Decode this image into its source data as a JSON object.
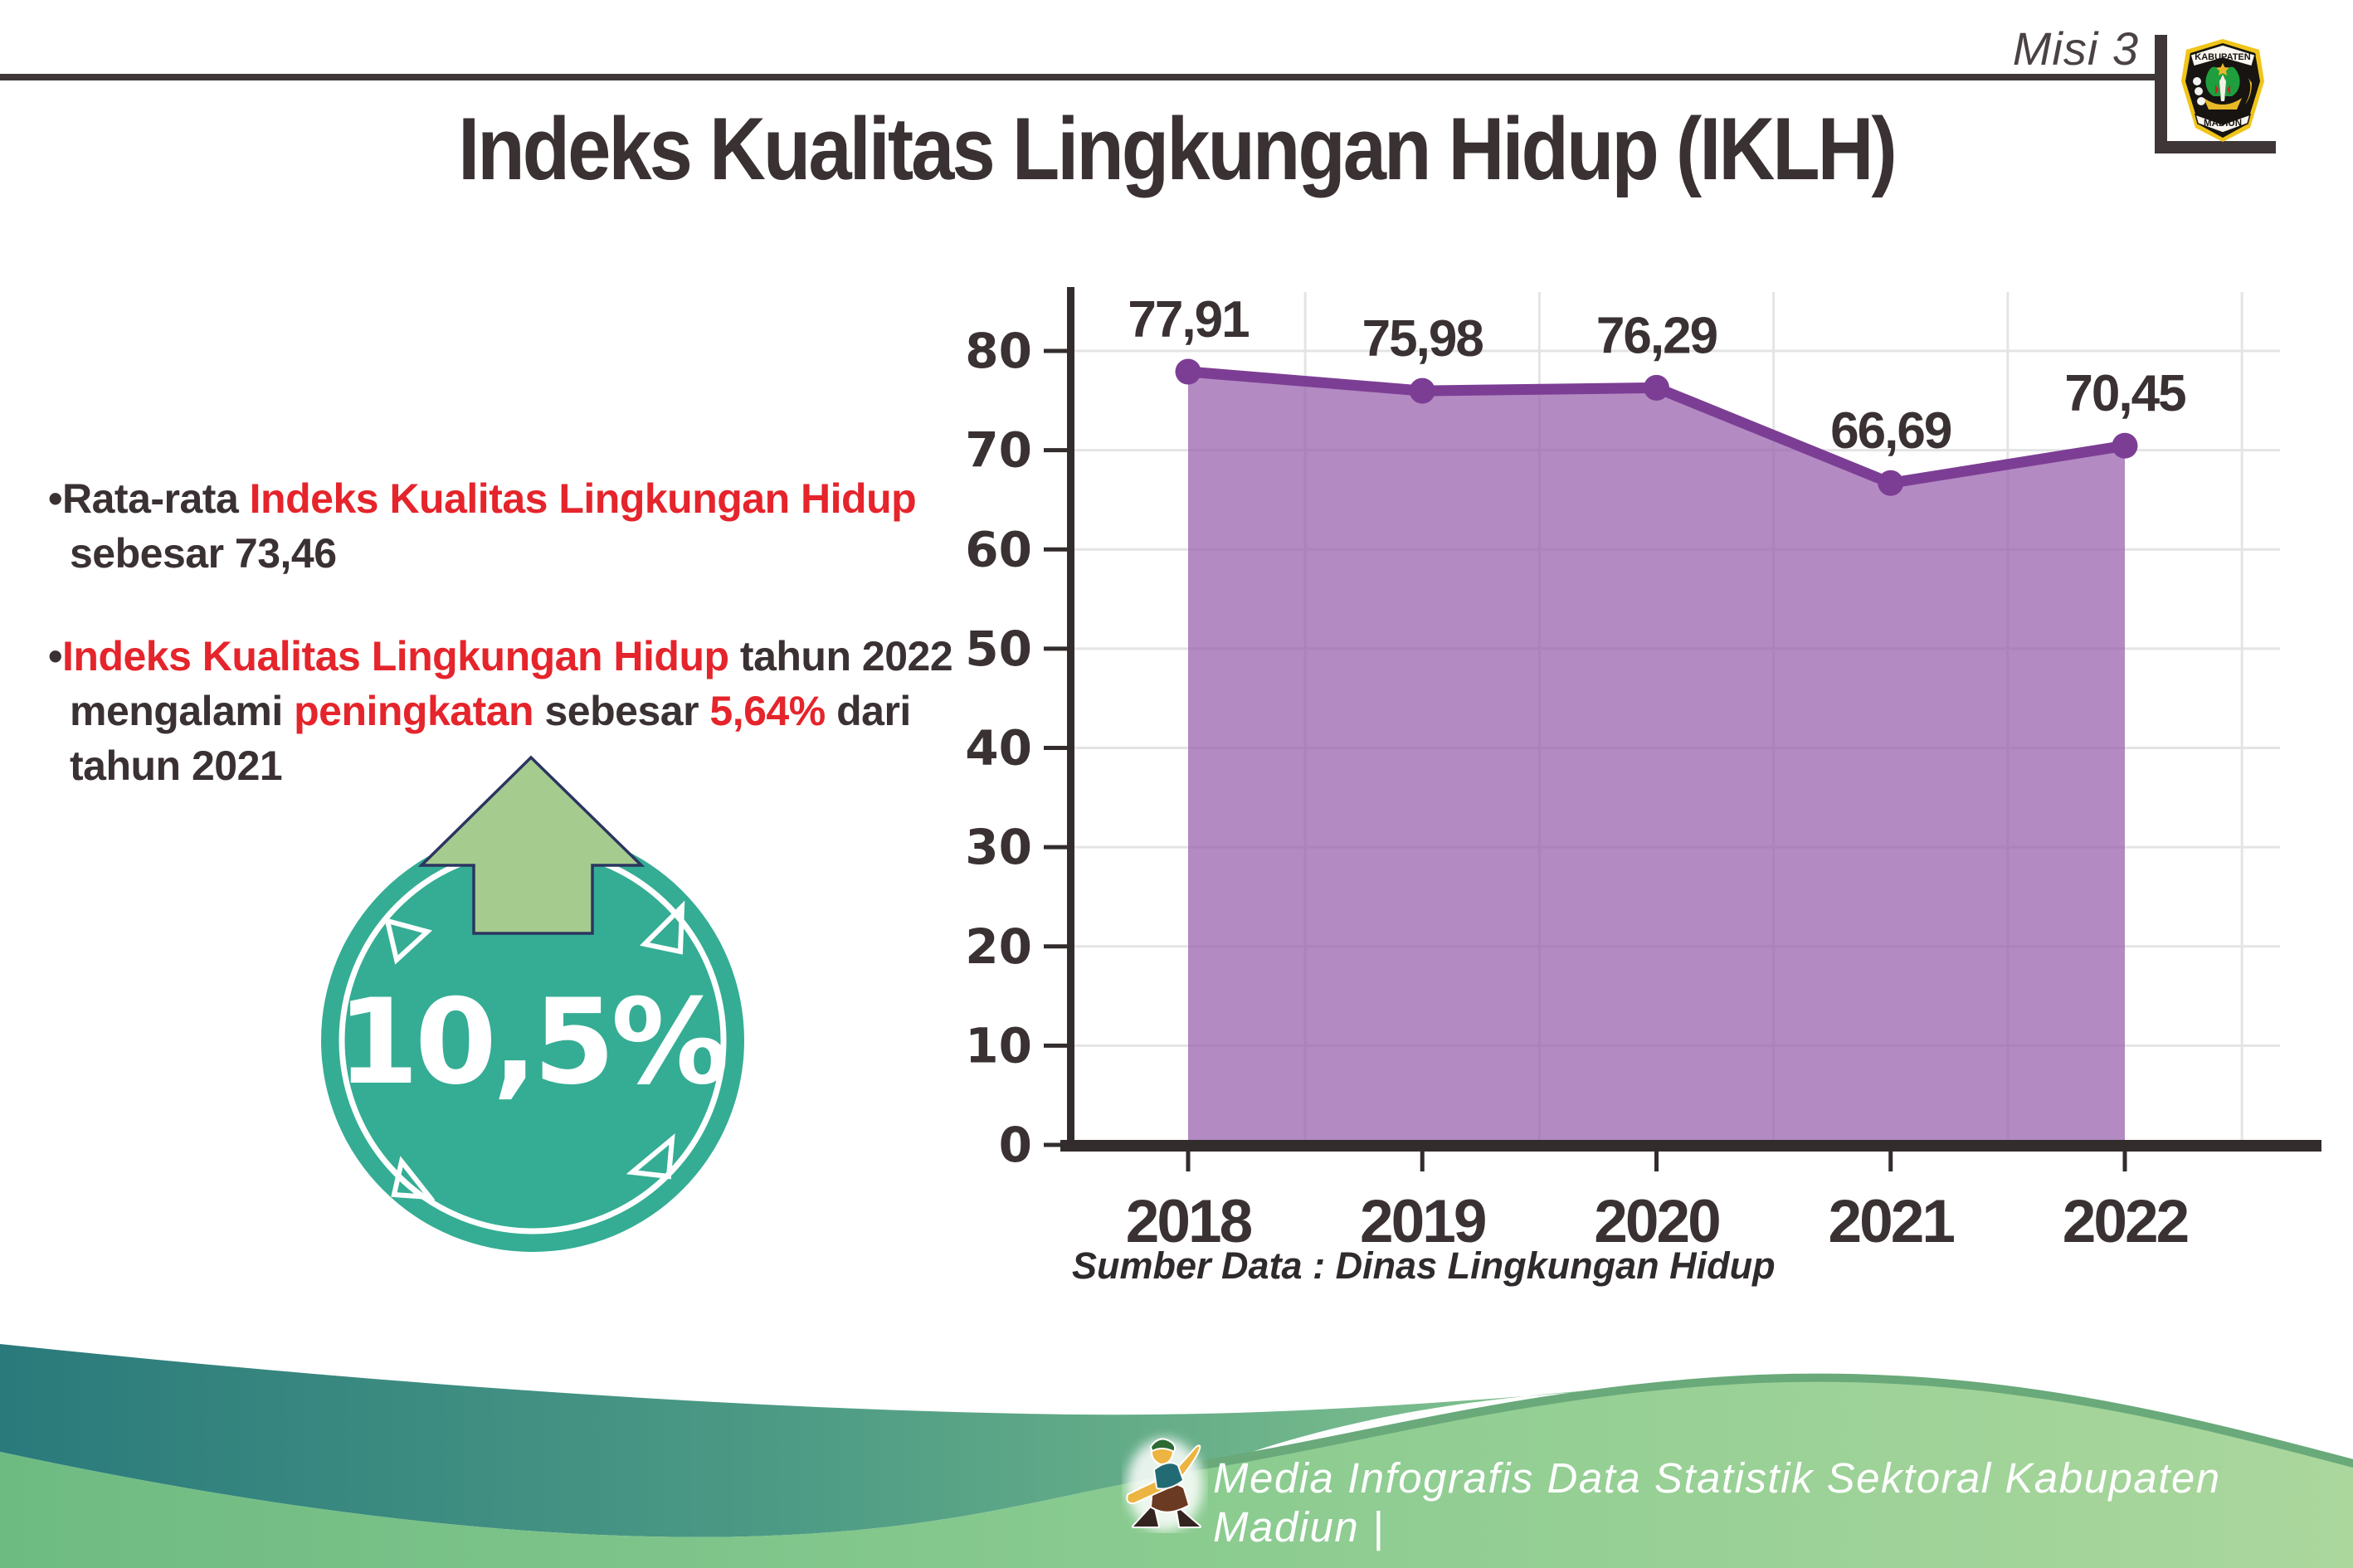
{
  "page": {
    "misi_label": "Misi 3",
    "title": "Indeks Kualitas Lingkungan Hidup (IKLH)"
  },
  "logo": {
    "top_banner": "KABUPATEN",
    "bottom_banner": "MADIUN"
  },
  "bullets": [
    {
      "lines": [
        [
          {
            "t": "•",
            "c": "dark"
          },
          {
            "t": "Rata-rata ",
            "c": "dark"
          },
          {
            "t": "Indeks Kualitas Lingkungan Hidup",
            "c": "red"
          }
        ],
        [
          {
            "t": "sebesar 73,46",
            "c": "dark"
          }
        ]
      ]
    },
    {
      "lines": [
        [
          {
            "t": "•",
            "c": "dark"
          },
          {
            "t": "Indeks Kualitas Lingkungan Hidup",
            "c": "red"
          },
          {
            "t": " tahun 2022",
            "c": "dark"
          }
        ],
        [
          {
            "t": "mengalami ",
            "c": "dark"
          },
          {
            "t": "peningkatan",
            "c": "red"
          },
          {
            "t": " sebesar ",
            "c": "dark"
          },
          {
            "t": "5,64%",
            "c": "red"
          },
          {
            "t": " dari",
            "c": "dark"
          }
        ],
        [
          {
            "t": "tahun 2021",
            "c": "dark"
          }
        ]
      ]
    }
  ],
  "badge": {
    "value": "10,5%",
    "circle_color": "#34ad94",
    "arrow_color": "#a6cb8e",
    "arrow_outline": "#2b3560"
  },
  "chart_data": {
    "type": "area",
    "title": "",
    "categories": [
      "2018",
      "2019",
      "2020",
      "2021",
      "2022"
    ],
    "series": [
      {
        "name": "IKLH",
        "values": [
          77.91,
          75.98,
          76.29,
          66.69,
          70.45
        ]
      }
    ],
    "value_labels": [
      "77,91",
      "75,98",
      "76,29",
      "66,69",
      "70,45"
    ],
    "xlabel": "",
    "ylabel": "",
    "ylim": [
      0,
      80
    ],
    "ytick_step": 10,
    "yticks": [
      0,
      10,
      20,
      30,
      40,
      50,
      60,
      70,
      80
    ],
    "grid": true,
    "legend": "none",
    "line_color": "#7c3e94",
    "fill_color": "rgba(151,94,172,0.73)",
    "axis_color": "#332c2d",
    "grid_color": "#e4e4e4",
    "label_color": "#3a3133"
  },
  "source_note": "Sumber Data : Dinas Lingkungan Hidup",
  "footer": {
    "caption": "Media Infografis Data Statistik Sektoral Kabupaten Madiun |"
  }
}
